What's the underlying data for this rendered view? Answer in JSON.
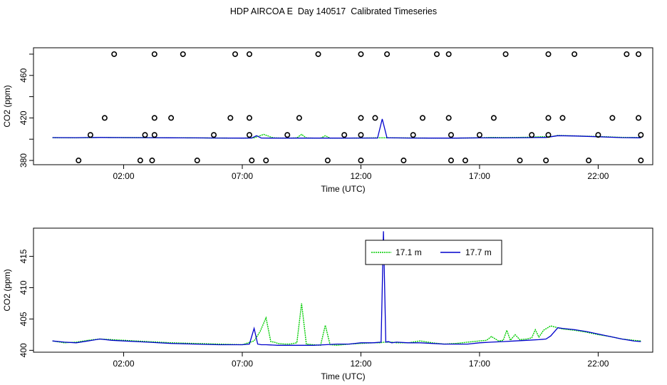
{
  "title": "HDP AIRCOA E  Day 140517  Calibrated Timeseries",
  "colors": {
    "series_a": "#00cc00",
    "series_b": "#0000cc",
    "axis": "#000000",
    "background": "#ffffff"
  },
  "chart_data": [
    {
      "type": "line+scatter",
      "xlabel": "Time (UTC)",
      "ylabel": "CO2 (ppm)",
      "x_unit": "hours UTC",
      "xlim": [
        -1.8,
        24.3
      ],
      "ylim": [
        376,
        486
      ],
      "x_ticks": [
        {
          "value": 2,
          "label": "02:00"
        },
        {
          "value": 7,
          "label": "07:00"
        },
        {
          "value": 12,
          "label": "12:00"
        },
        {
          "value": 17,
          "label": "17:00"
        },
        {
          "value": 22,
          "label": "22:00"
        }
      ],
      "y_ticks": [
        {
          "value": 380,
          "label": "380"
        },
        {
          "value": 420,
          "label": "420"
        },
        {
          "value": 460,
          "label": "460"
        }
      ],
      "circles": [
        {
          "level": 480,
          "x": [
            1.6,
            3.3,
            4.5,
            6.7,
            7.3,
            10.2,
            12.0,
            13.1,
            15.2,
            15.7,
            18.1,
            19.9,
            21.0,
            23.2,
            23.7
          ]
        },
        {
          "level": 420,
          "x": [
            1.2,
            3.3,
            4.0,
            6.5,
            7.3,
            9.4,
            12.0,
            12.6,
            14.6,
            15.7,
            17.6,
            19.9,
            20.5,
            22.6,
            23.7
          ]
        },
        {
          "level": 404,
          "x": [
            0.6,
            2.9,
            3.3,
            5.8,
            7.3,
            8.9,
            11.3,
            12.0,
            14.2,
            15.8,
            17.0,
            19.2,
            19.9,
            22.0,
            23.8
          ]
        },
        {
          "level": 380,
          "x": [
            0.1,
            2.7,
            3.2,
            5.1,
            7.4,
            8.0,
            10.6,
            12.0,
            13.8,
            15.8,
            16.4,
            18.7,
            19.8,
            21.6,
            23.8
          ]
        }
      ],
      "series": [
        {
          "name": "17.1 m",
          "color": "#00cc00",
          "x": [
            -1.0,
            0.0,
            1.0,
            2.0,
            3.0,
            4.0,
            5.0,
            6.0,
            7.0,
            7.5,
            7.9,
            8.3,
            8.6,
            9.0,
            9.3,
            9.5,
            9.7,
            10.0,
            10.3,
            10.5,
            10.7,
            11.0,
            12.0,
            12.5,
            12.9,
            13.1,
            13.5,
            14.0,
            15.0,
            16.0,
            17.0,
            17.5,
            18.0,
            18.5,
            19.0,
            19.5,
            20.0,
            20.3,
            21.0,
            22.0,
            23.0,
            23.8
          ],
          "y": [
            401.4,
            401.3,
            401.6,
            401.5,
            401.5,
            401.3,
            401.2,
            401.1,
            401.0,
            401.3,
            404.5,
            401.3,
            401.1,
            401.0,
            401.2,
            404.5,
            401.2,
            401.0,
            401.0,
            403.2,
            401.0,
            401.0,
            401.1,
            401.2,
            401.3,
            401.3,
            401.2,
            401.2,
            401.0,
            401.0,
            401.3,
            401.6,
            401.5,
            401.6,
            401.8,
            402.2,
            402.3,
            403.5,
            403.1,
            402.5,
            401.7,
            401.5
          ]
        },
        {
          "name": "17.7 m",
          "color": "#0000cc",
          "x": [
            -1.0,
            0.0,
            1.0,
            2.0,
            3.0,
            4.0,
            5.0,
            6.0,
            7.0,
            7.4,
            7.6,
            7.8,
            8.2,
            9.0,
            10.0,
            11.0,
            12.0,
            12.7,
            12.9,
            13.1,
            13.5,
            14.0,
            15.0,
            16.0,
            17.0,
            18.0,
            19.0,
            19.5,
            19.8,
            20.3,
            21.0,
            22.0,
            23.0,
            23.8
          ],
          "y": [
            401.5,
            401.4,
            401.6,
            401.5,
            401.4,
            401.3,
            401.2,
            401.1,
            401.0,
            401.1,
            403.3,
            401.1,
            401.0,
            401.0,
            401.0,
            401.0,
            401.1,
            401.1,
            419.0,
            401.2,
            401.2,
            401.1,
            401.0,
            401.0,
            401.2,
            401.2,
            401.4,
            401.6,
            401.6,
            403.3,
            403.0,
            402.3,
            401.5,
            401.3
          ]
        }
      ]
    },
    {
      "type": "line",
      "xlabel": "Time (UTC)",
      "ylabel": "CO2 (ppm)",
      "x_unit": "hours UTC",
      "xlim": [
        -1.8,
        24.3
      ],
      "ylim": [
        399.7,
        419.5
      ],
      "x_ticks": [
        {
          "value": 2,
          "label": "02:00"
        },
        {
          "value": 7,
          "label": "07:00"
        },
        {
          "value": 12,
          "label": "12:00"
        },
        {
          "value": 17,
          "label": "17:00"
        },
        {
          "value": 22,
          "label": "22:00"
        }
      ],
      "y_ticks": [
        {
          "value": 400,
          "label": "400"
        },
        {
          "value": 405,
          "label": "405"
        },
        {
          "value": 410,
          "label": "410"
        },
        {
          "value": 415,
          "label": "415"
        }
      ],
      "legend": "top-right",
      "series": [
        {
          "name": "17.1 m",
          "color": "#00cc00",
          "x": [
            -1.0,
            -0.5,
            0.0,
            0.5,
            1.0,
            1.5,
            2.0,
            3.0,
            4.0,
            5.0,
            6.0,
            7.0,
            7.5,
            7.75,
            8.0,
            8.2,
            8.35,
            8.5,
            8.8,
            9.0,
            9.3,
            9.5,
            9.7,
            10.0,
            10.3,
            10.5,
            10.7,
            11.0,
            11.5,
            12.0,
            12.5,
            12.8,
            13.0,
            13.3,
            13.5,
            14.0,
            14.5,
            15.0,
            15.5,
            16.0,
            16.5,
            17.0,
            17.3,
            17.5,
            17.8,
            18.0,
            18.15,
            18.3,
            18.5,
            18.7,
            19.0,
            19.2,
            19.35,
            19.5,
            19.7,
            20.0,
            20.3,
            20.5,
            21.0,
            21.5,
            22.0,
            22.5,
            23.0,
            23.5,
            23.8
          ],
          "y": [
            401.5,
            401.2,
            401.3,
            401.6,
            401.8,
            401.7,
            401.6,
            401.4,
            401.2,
            401.1,
            401.0,
            400.9,
            401.5,
            403.0,
            405.2,
            401.4,
            401.3,
            401.1,
            401.0,
            401.0,
            401.2,
            407.5,
            401.0,
            400.9,
            400.8,
            404.0,
            400.9,
            400.8,
            401.0,
            401.1,
            401.2,
            401.2,
            401.3,
            401.3,
            401.2,
            401.2,
            401.5,
            401.2,
            401.0,
            401.1,
            401.3,
            401.5,
            401.6,
            402.2,
            401.5,
            401.6,
            403.2,
            401.6,
            402.5,
            401.7,
            401.8,
            402.0,
            403.3,
            402.1,
            403.2,
            403.9,
            403.6,
            403.4,
            403.2,
            402.9,
            402.5,
            402.2,
            401.8,
            401.6,
            401.5
          ]
        },
        {
          "name": "17.7 m",
          "color": "#0000cc",
          "x": [
            -1.0,
            -0.5,
            0.0,
            0.5,
            1.0,
            1.5,
            2.0,
            3.0,
            4.0,
            5.0,
            6.0,
            7.0,
            7.3,
            7.5,
            7.65,
            7.8,
            8.0,
            8.5,
            9.0,
            9.5,
            10.0,
            10.5,
            11.0,
            11.5,
            12.0,
            12.5,
            12.85,
            12.95,
            13.05,
            13.15,
            13.3,
            13.5,
            14.0,
            14.5,
            15.0,
            15.5,
            16.0,
            16.5,
            17.0,
            17.5,
            18.0,
            18.5,
            19.0,
            19.5,
            19.8,
            20.0,
            20.3,
            20.5,
            21.0,
            21.5,
            22.0,
            22.5,
            23.0,
            23.5,
            23.8
          ],
          "y": [
            401.5,
            401.3,
            401.2,
            401.5,
            401.8,
            401.6,
            401.5,
            401.3,
            401.1,
            401.0,
            400.9,
            400.9,
            401.0,
            403.5,
            401.0,
            400.9,
            400.9,
            400.8,
            400.8,
            400.8,
            400.8,
            400.9,
            401.0,
            401.0,
            401.2,
            401.2,
            401.3,
            419.0,
            401.3,
            401.4,
            401.2,
            401.3,
            401.2,
            401.2,
            401.1,
            401.0,
            401.0,
            401.0,
            401.2,
            401.3,
            401.4,
            401.5,
            401.6,
            401.7,
            401.8,
            402.3,
            403.6,
            403.5,
            403.3,
            403.0,
            402.6,
            402.2,
            401.8,
            401.5,
            401.4
          ]
        }
      ]
    }
  ]
}
